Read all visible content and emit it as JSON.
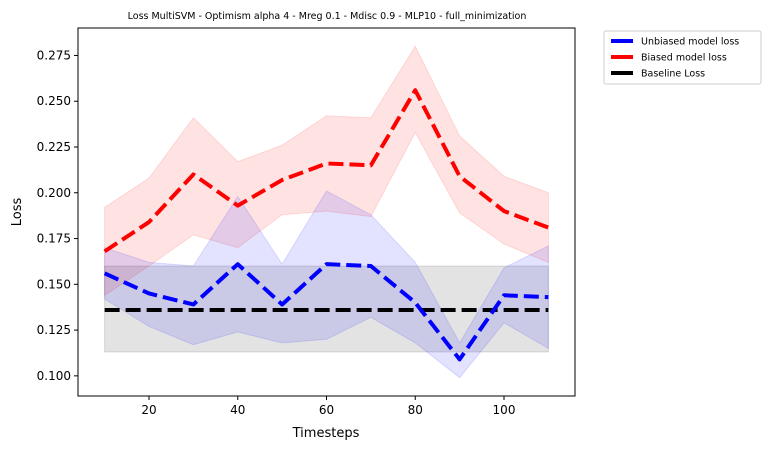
{
  "chart_data": {
    "type": "line",
    "title": "Loss MultiSVM - Optimism alpha 4 - Mreg 0.1 - Mdisc 0.9 - MLP10 - full_minimization",
    "xlabel": "Timesteps",
    "ylabel": "Loss",
    "xlim": [
      4,
      116
    ],
    "ylim": [
      0.089,
      0.29
    ],
    "xticks": [
      20,
      40,
      60,
      80,
      100
    ],
    "yticks": [
      0.1,
      0.125,
      0.15,
      0.175,
      0.2,
      0.225,
      0.25,
      0.275
    ],
    "ytick_labels": [
      "0.100",
      "0.125",
      "0.150",
      "0.175",
      "0.200",
      "0.225",
      "0.250",
      "0.275"
    ],
    "grid": false,
    "legend_placement": "outside-top-right",
    "x": [
      10,
      20,
      30,
      40,
      50,
      60,
      70,
      80,
      90,
      100,
      110
    ],
    "series": [
      {
        "name": "Unbiased model loss",
        "color": "#0000ff",
        "values": [
          0.156,
          0.145,
          0.139,
          0.161,
          0.139,
          0.161,
          0.16,
          0.14,
          0.109,
          0.144,
          0.143
        ],
        "upper": [
          0.17,
          0.162,
          0.16,
          0.198,
          0.161,
          0.201,
          0.188,
          0.162,
          0.118,
          0.159,
          0.171
        ],
        "lower": [
          0.142,
          0.127,
          0.117,
          0.124,
          0.118,
          0.12,
          0.132,
          0.118,
          0.099,
          0.129,
          0.115
        ]
      },
      {
        "name": "Biased model loss",
        "color": "#ff0000",
        "values": [
          0.168,
          0.184,
          0.21,
          0.193,
          0.207,
          0.216,
          0.215,
          0.256,
          0.209,
          0.19,
          0.181
        ],
        "upper": [
          0.192,
          0.208,
          0.241,
          0.217,
          0.226,
          0.242,
          0.241,
          0.28,
          0.231,
          0.209,
          0.2
        ],
        "lower": [
          0.144,
          0.16,
          0.177,
          0.17,
          0.188,
          0.19,
          0.187,
          0.233,
          0.189,
          0.172,
          0.162
        ]
      },
      {
        "name": "Baseline Loss",
        "color": "#000000",
        "values": [
          0.136,
          0.136,
          0.136,
          0.136,
          0.136,
          0.136,
          0.136,
          0.136,
          0.136,
          0.136,
          0.136
        ],
        "upper": [
          0.16,
          0.16,
          0.16,
          0.16,
          0.16,
          0.16,
          0.16,
          0.16,
          0.16,
          0.16,
          0.16
        ],
        "lower": [
          0.113,
          0.113,
          0.113,
          0.113,
          0.113,
          0.113,
          0.113,
          0.113,
          0.113,
          0.113,
          0.113
        ]
      }
    ]
  }
}
